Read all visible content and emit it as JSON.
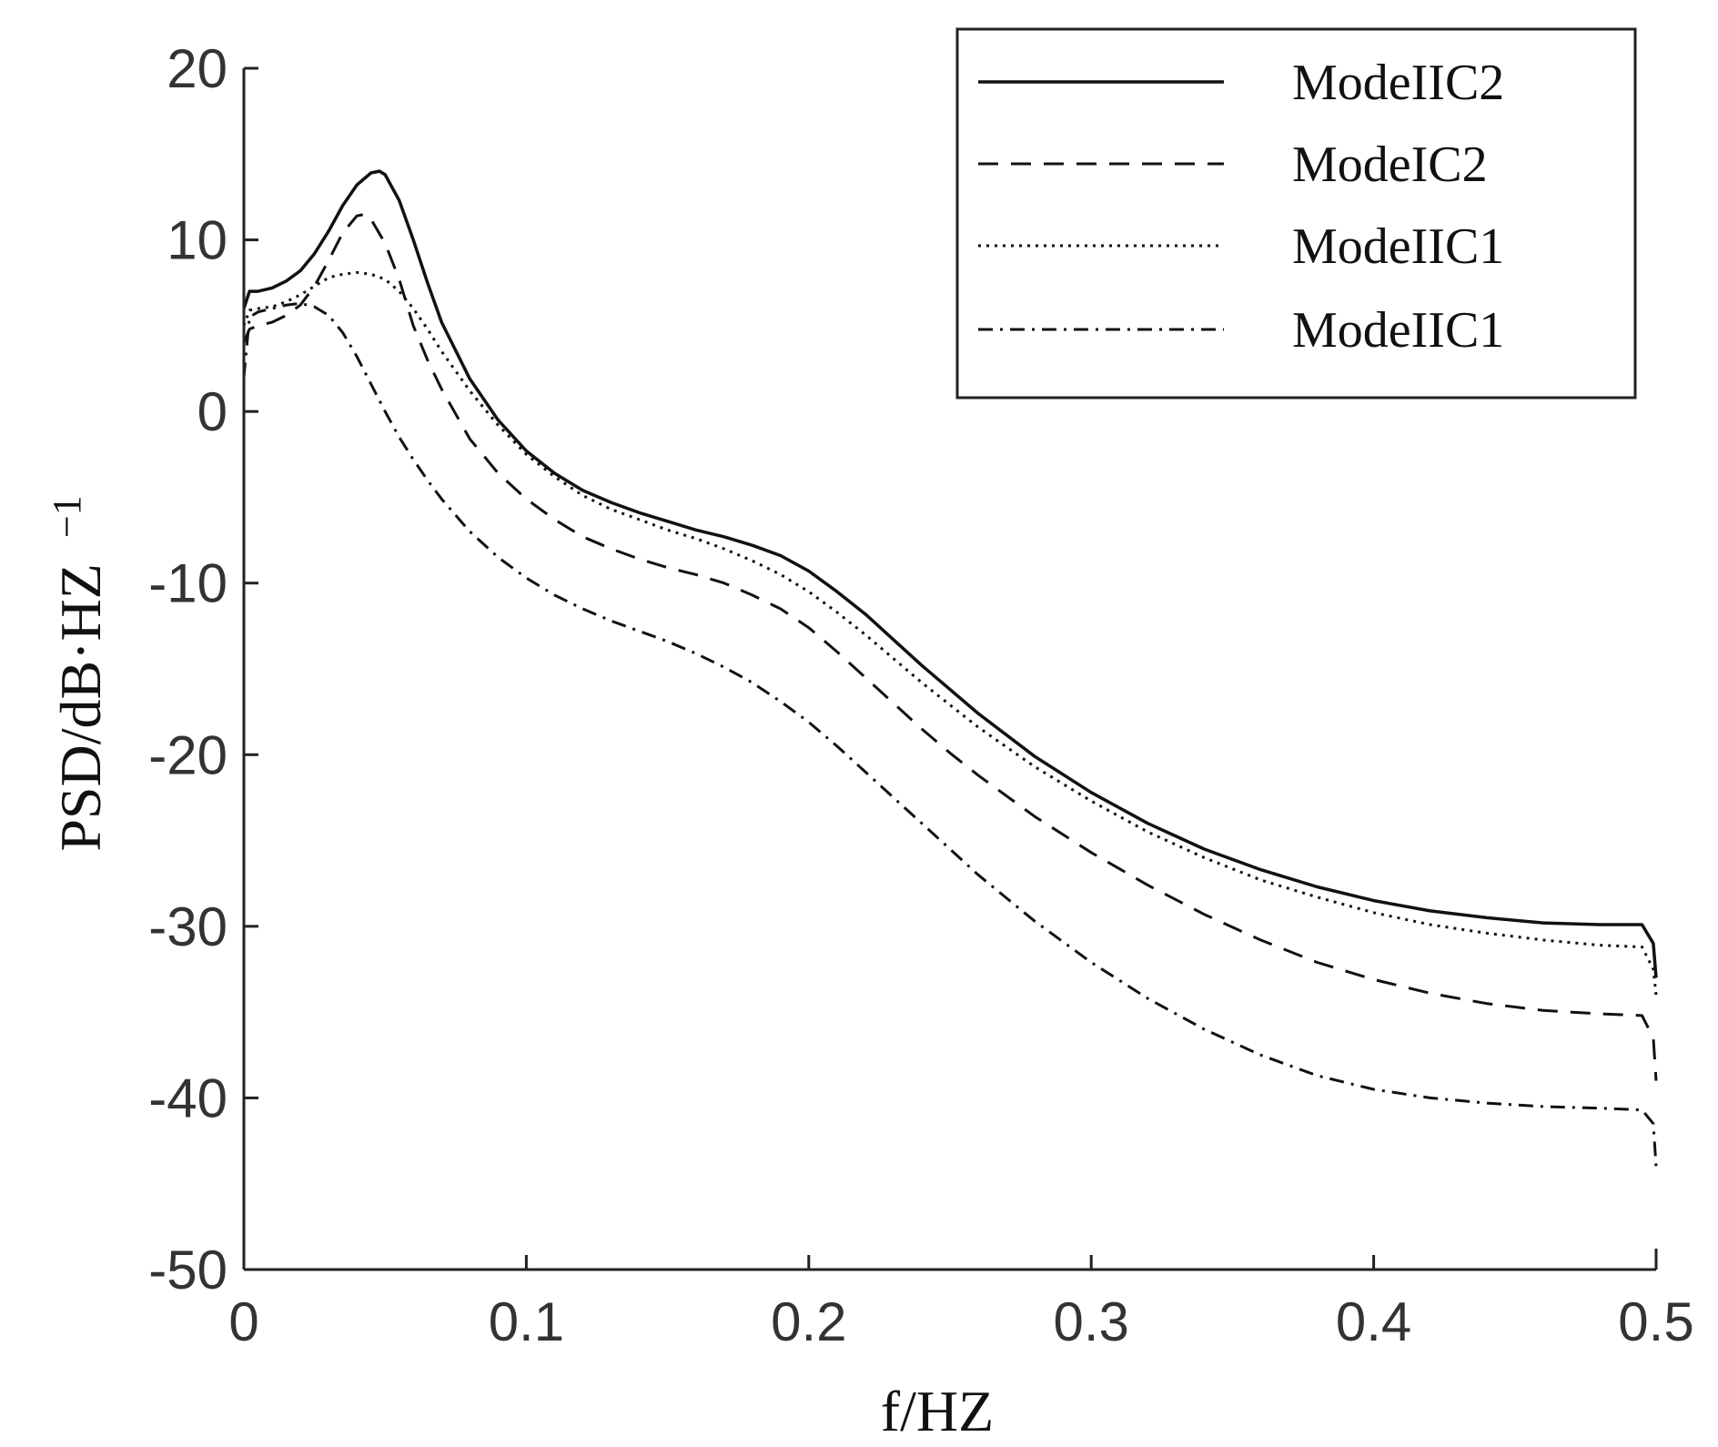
{
  "chart_data": {
    "type": "line",
    "title": "",
    "xlabel": "f/HZ",
    "ylabel": "PSD/dB·HZ",
    "ylabel_sup": "−1",
    "xlim": [
      0,
      0.5
    ],
    "ylim": [
      -50,
      20
    ],
    "xticks": [
      0,
      0.1,
      0.2,
      0.3,
      0.4,
      0.5
    ],
    "xtick_labels": [
      "0",
      "0.1",
      "0.2",
      "0.3",
      "0.4",
      "0.5"
    ],
    "yticks": [
      -50,
      -40,
      -30,
      -20,
      -10,
      0,
      10,
      20
    ],
    "ytick_labels": [
      "-50",
      "-40",
      "-30",
      "-20",
      "-10",
      "0",
      "10",
      "20"
    ],
    "grid": false,
    "legend_position": "top-right",
    "series": [
      {
        "name": "ModeIIC2",
        "style": "solid",
        "x": [
          0,
          0.002,
          0.005,
          0.01,
          0.015,
          0.02,
          0.025,
          0.03,
          0.035,
          0.04,
          0.045,
          0.048,
          0.05,
          0.055,
          0.06,
          0.065,
          0.07,
          0.08,
          0.09,
          0.1,
          0.11,
          0.12,
          0.13,
          0.14,
          0.15,
          0.16,
          0.17,
          0.18,
          0.19,
          0.2,
          0.21,
          0.22,
          0.23,
          0.24,
          0.25,
          0.26,
          0.28,
          0.3,
          0.32,
          0.34,
          0.36,
          0.38,
          0.4,
          0.42,
          0.44,
          0.46,
          0.48,
          0.495,
          0.499,
          0.5
        ],
        "y": [
          6,
          7,
          7,
          7.2,
          7.6,
          8.2,
          9.2,
          10.5,
          12,
          13.2,
          13.9,
          14,
          13.8,
          12.3,
          10,
          7.5,
          5.2,
          1.9,
          -0.5,
          -2.3,
          -3.6,
          -4.6,
          -5.3,
          -5.9,
          -6.4,
          -6.9,
          -7.3,
          -7.8,
          -8.4,
          -9.3,
          -10.5,
          -11.8,
          -13.3,
          -14.8,
          -16.2,
          -17.6,
          -20.1,
          -22.2,
          -24,
          -25.5,
          -26.7,
          -27.7,
          -28.5,
          -29.1,
          -29.5,
          -29.8,
          -29.9,
          -29.9,
          -31,
          -33
        ]
      },
      {
        "name": "ModeIC2",
        "style": "dashed",
        "x": [
          0,
          0.002,
          0.005,
          0.01,
          0.015,
          0.02,
          0.025,
          0.03,
          0.035,
          0.04,
          0.043,
          0.045,
          0.05,
          0.055,
          0.06,
          0.065,
          0.07,
          0.08,
          0.09,
          0.1,
          0.11,
          0.12,
          0.13,
          0.14,
          0.15,
          0.16,
          0.17,
          0.18,
          0.19,
          0.2,
          0.21,
          0.22,
          0.23,
          0.24,
          0.25,
          0.26,
          0.28,
          0.3,
          0.32,
          0.34,
          0.36,
          0.38,
          0.4,
          0.42,
          0.44,
          0.46,
          0.48,
          0.495,
          0.499,
          0.5
        ],
        "y": [
          4,
          4.8,
          5,
          5.2,
          5.6,
          6.2,
          7.3,
          8.8,
          10.4,
          11.4,
          11.5,
          11.2,
          9.8,
          7.7,
          5,
          3,
          1.3,
          -1.6,
          -3.6,
          -5.1,
          -6.3,
          -7.3,
          -8,
          -8.6,
          -9.1,
          -9.5,
          -10,
          -10.7,
          -11.5,
          -12.6,
          -14,
          -15.5,
          -17,
          -18.5,
          -19.9,
          -21.2,
          -23.6,
          -25.7,
          -27.6,
          -29.3,
          -30.8,
          -32.1,
          -33.1,
          -33.9,
          -34.5,
          -34.9,
          -35.1,
          -35.2,
          -36.5,
          -39
        ]
      },
      {
        "name": "ModeIIC1",
        "style": "dotted",
        "x": [
          0,
          0.002,
          0.005,
          0.01,
          0.015,
          0.02,
          0.025,
          0.03,
          0.035,
          0.04,
          0.045,
          0.05,
          0.055,
          0.06,
          0.065,
          0.07,
          0.08,
          0.09,
          0.1,
          0.11,
          0.12,
          0.13,
          0.14,
          0.15,
          0.16,
          0.17,
          0.18,
          0.19,
          0.2,
          0.21,
          0.22,
          0.23,
          0.24,
          0.25,
          0.26,
          0.28,
          0.3,
          0.32,
          0.34,
          0.36,
          0.38,
          0.4,
          0.42,
          0.44,
          0.46,
          0.48,
          0.495,
          0.499,
          0.5
        ],
        "y": [
          5,
          5.9,
          6,
          6.1,
          6.4,
          6.8,
          7.3,
          7.8,
          8,
          8.1,
          8,
          7.7,
          7,
          6,
          4.8,
          3.5,
          1.2,
          -0.8,
          -2.5,
          -3.8,
          -4.9,
          -5.7,
          -6.3,
          -6.9,
          -7.4,
          -8,
          -8.7,
          -9.5,
          -10.5,
          -11.7,
          -13,
          -14.4,
          -15.8,
          -17.1,
          -18.4,
          -20.7,
          -22.7,
          -24.5,
          -26,
          -27.3,
          -28.3,
          -29.2,
          -29.9,
          -30.4,
          -30.8,
          -31.1,
          -31.2,
          -32.5,
          -34
        ]
      },
      {
        "name": "ModeIIC1",
        "style": "dashdot",
        "x": [
          0,
          0.002,
          0.005,
          0.01,
          0.015,
          0.02,
          0.025,
          0.03,
          0.035,
          0.04,
          0.045,
          0.05,
          0.055,
          0.06,
          0.065,
          0.07,
          0.08,
          0.09,
          0.1,
          0.11,
          0.12,
          0.13,
          0.14,
          0.15,
          0.16,
          0.17,
          0.18,
          0.19,
          0.2,
          0.21,
          0.22,
          0.23,
          0.24,
          0.25,
          0.26,
          0.28,
          0.3,
          0.32,
          0.34,
          0.36,
          0.38,
          0.4,
          0.42,
          0.44,
          0.46,
          0.48,
          0.495,
          0.499,
          0.5
        ],
        "y": [
          2,
          5.5,
          5.8,
          6,
          6.2,
          6.3,
          6.1,
          5.6,
          4.6,
          3.2,
          1.6,
          0,
          -1.5,
          -2.8,
          -4,
          -5.1,
          -7,
          -8.5,
          -9.7,
          -10.7,
          -11.5,
          -12.2,
          -12.8,
          -13.4,
          -14.1,
          -14.9,
          -15.8,
          -16.9,
          -18.1,
          -19.5,
          -21,
          -22.5,
          -24,
          -25.5,
          -27,
          -29.7,
          -32.1,
          -34.2,
          -36,
          -37.5,
          -38.7,
          -39.5,
          -40,
          -40.3,
          -40.5,
          -40.6,
          -40.7,
          -41.5,
          -44
        ]
      }
    ]
  }
}
